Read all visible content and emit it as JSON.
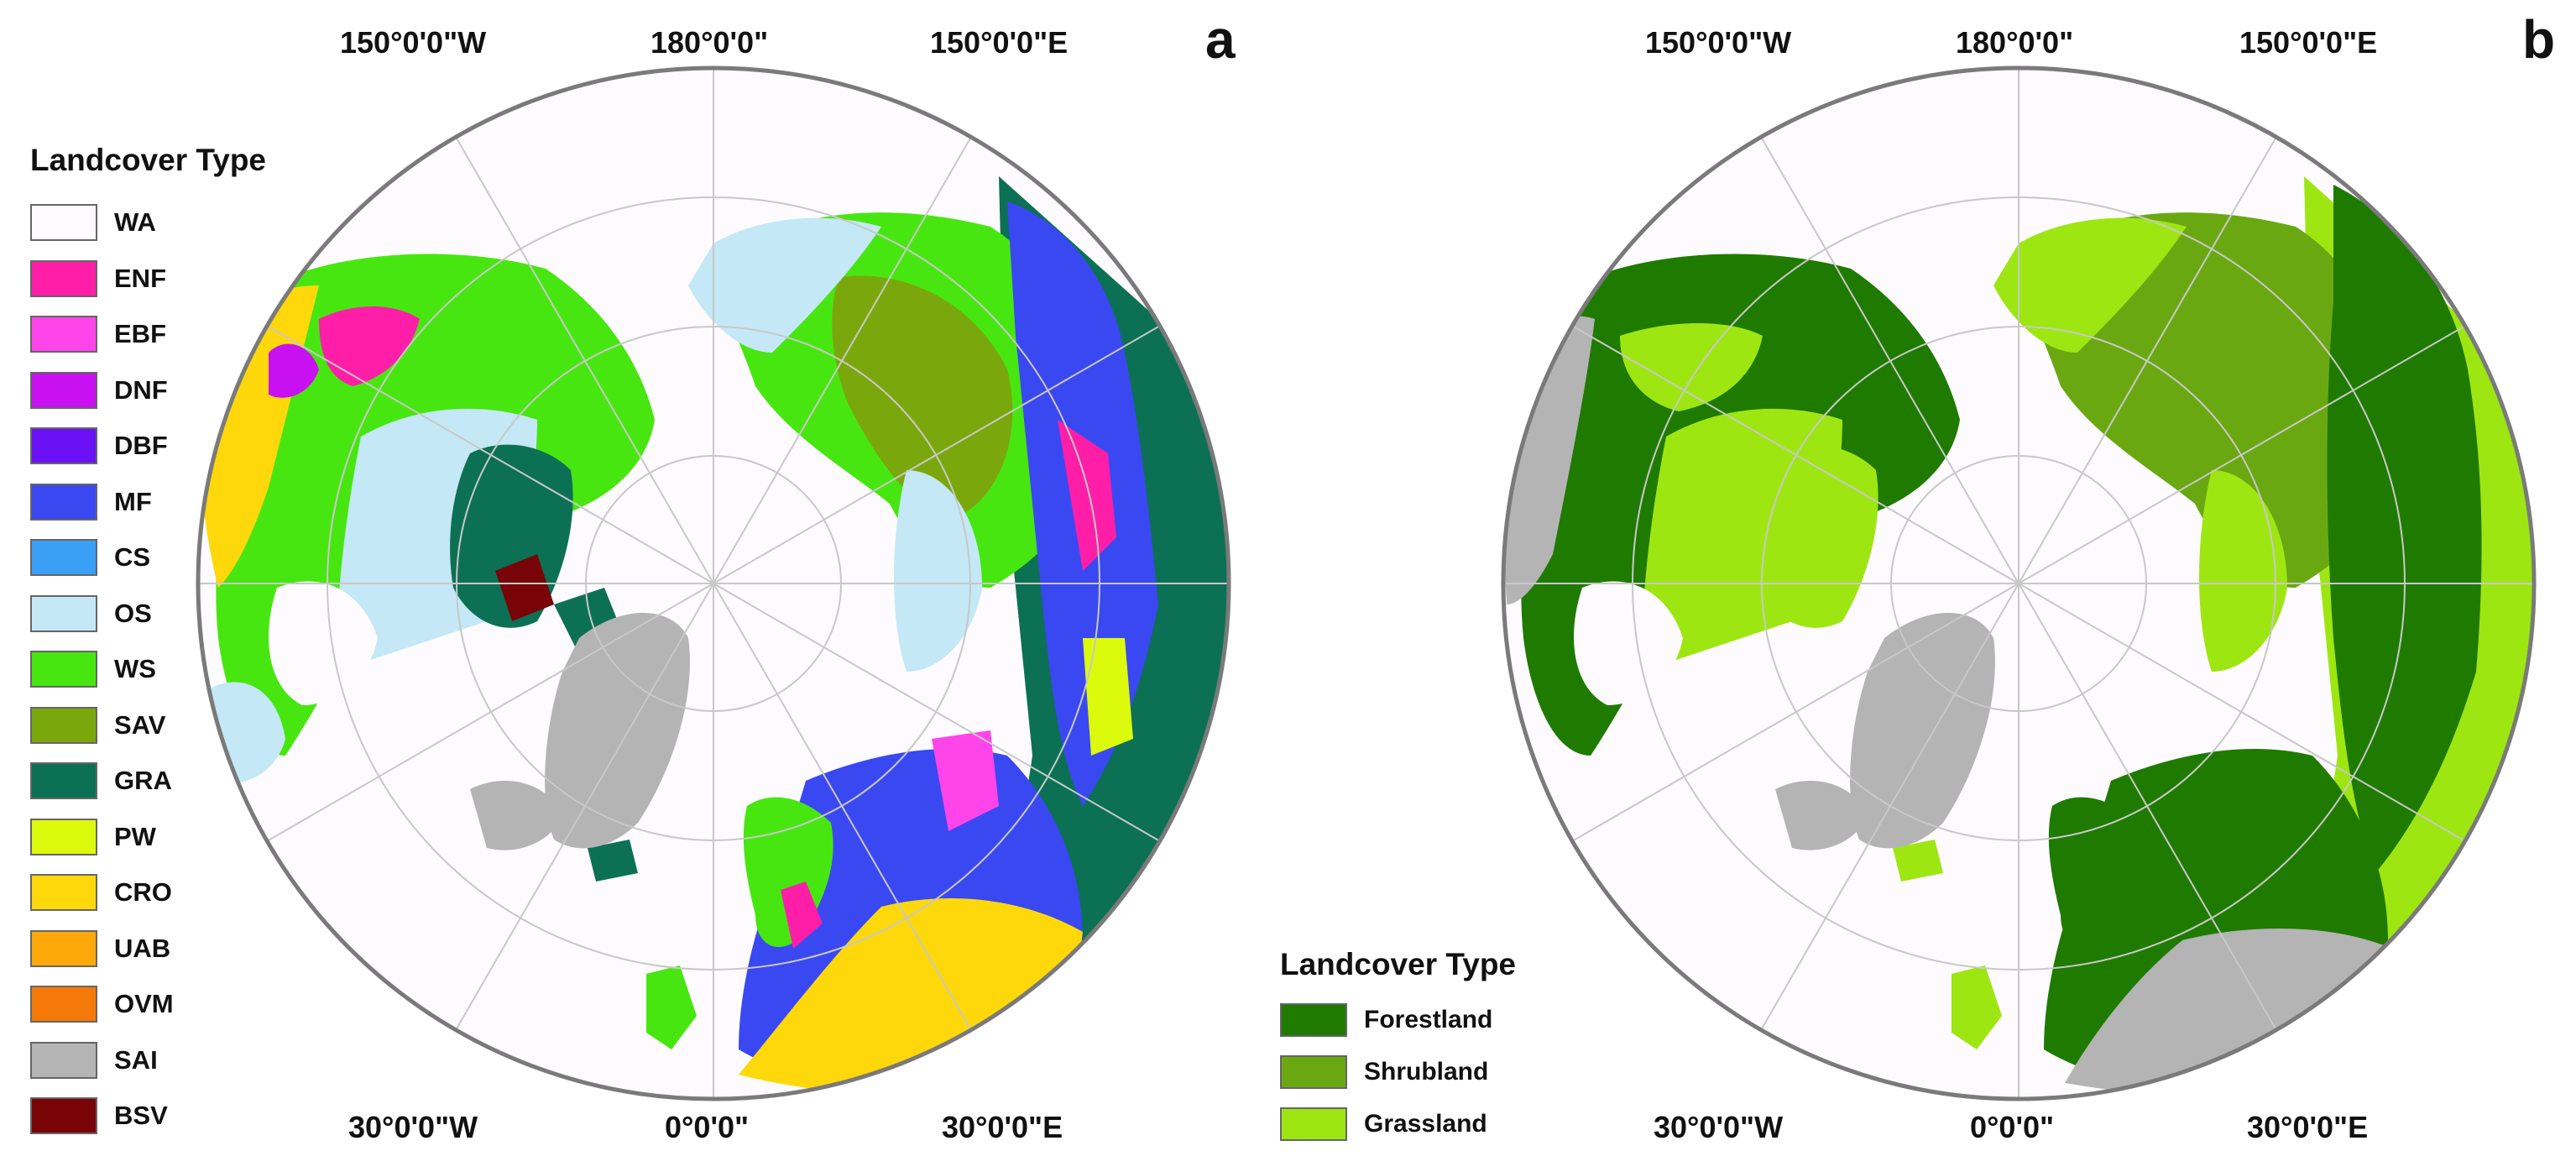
{
  "panels": {
    "a": {
      "letter": "a",
      "coords": {
        "top_left": "150°0'0\"W",
        "top_center": "180°0'0\"",
        "top_right": "150°0'0\"E",
        "bottom_left": "30°0'0\"W",
        "bottom_center": "0°0'0\"",
        "bottom_right": "30°0'0\"E"
      },
      "legend": {
        "title": "Landcover Type",
        "items": [
          {
            "label": "WA",
            "color": "#fdfbfd"
          },
          {
            "label": "ENF",
            "color": "#ff1ea8"
          },
          {
            "label": "EBF",
            "color": "#ff44ea"
          },
          {
            "label": "DNF",
            "color": "#c810f0"
          },
          {
            "label": "DBF",
            "color": "#6a12f5"
          },
          {
            "label": "MF",
            "color": "#3a48f2"
          },
          {
            "label": "CS",
            "color": "#3aa0f5"
          },
          {
            "label": "OS",
            "color": "#c4e8f6"
          },
          {
            "label": "WS",
            "color": "#48e610"
          },
          {
            "label": "SAV",
            "color": "#7aa80c"
          },
          {
            "label": "GRA",
            "color": "#0c7055"
          },
          {
            "label": "PW",
            "color": "#dcfa0c"
          },
          {
            "label": "CRO",
            "color": "#fed80a"
          },
          {
            "label": "UAB",
            "color": "#ffa80a"
          },
          {
            "label": "OVM",
            "color": "#f57a0a"
          },
          {
            "label": "SAI",
            "color": "#b4b4b4"
          },
          {
            "label": "BSV",
            "color": "#780408"
          }
        ]
      }
    },
    "b": {
      "letter": "b",
      "coords": {
        "top_left": "150°0'0\"W",
        "top_center": "180°0'0\"",
        "top_right": "150°0'0\"E",
        "bottom_left": "30°0'0\"W",
        "bottom_center": "0°0'0\"",
        "bottom_right": "30°0'0\"E"
      },
      "legend": {
        "title": "Landcover Type",
        "items": [
          {
            "label": "Forestland",
            "color": "#1f7a00"
          },
          {
            "label": "Shrubland",
            "color": "#6aa812"
          },
          {
            "label": "Grassland",
            "color": "#9ee612"
          }
        ]
      }
    }
  },
  "colors": {
    "frame": "#7a7a7a",
    "graticule": "#c8c8c8",
    "ocean": "#fdfbfd",
    "ice": "#b4b4b4"
  }
}
